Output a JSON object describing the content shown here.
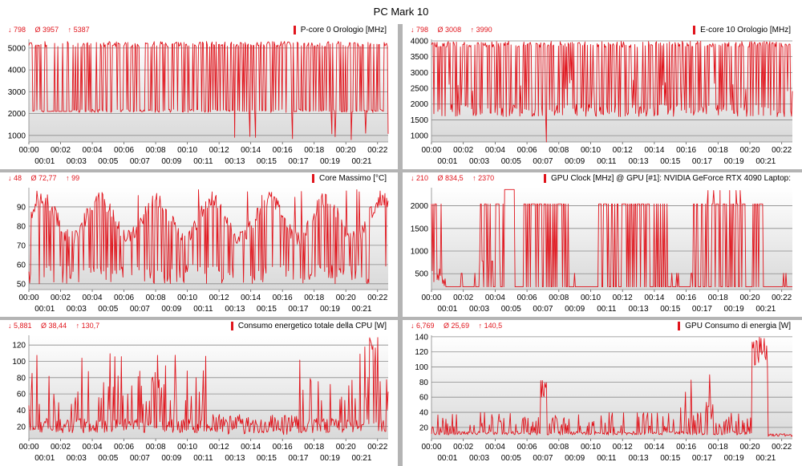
{
  "window": {
    "title": "PC Mark 10"
  },
  "colors": {
    "series": "#e0141c",
    "plot_top": "#ffffff",
    "plot_bottom": "#d9d9d9",
    "grid": "#8a8a8a",
    "separator": "#b4b4b4"
  },
  "time_ticks": {
    "top": [
      "00:00",
      "00:02",
      "00:04",
      "00:06",
      "00:08",
      "00:10",
      "00:12",
      "00:14",
      "00:16",
      "00:18",
      "00:20",
      "00:22"
    ],
    "bottom": [
      "00:01",
      "00:03",
      "00:05",
      "00:07",
      "00:09",
      "00:11",
      "00:13",
      "00:15",
      "00:17",
      "00:19",
      "00:21"
    ]
  },
  "chart_data": [
    {
      "type": "line",
      "title": "P-core 0 Orologio [MHz]",
      "stats": {
        "min": "↓ 798",
        "avg": "Ø 3957",
        "max": "↑ 5387"
      },
      "ylim": [
        700,
        5400
      ],
      "yticks": [
        "1000",
        "2000",
        "3000",
        "4000",
        "5000"
      ],
      "grid": true,
      "x_range": [
        "00:00",
        "00:22:40"
      ],
      "pattern": {
        "seed": 11,
        "levels": [
          5100,
          5200,
          5050,
          2100,
          2050
        ],
        "spike_low": 800,
        "base": 2100,
        "style": "pcore"
      }
    },
    {
      "type": "line",
      "title": "E-core 10 Orologio [MHz]",
      "stats": {
        "min": "↓ 798",
        "avg": "Ø 3008",
        "max": "↑ 3990"
      },
      "ylim": [
        800,
        4050
      ],
      "yticks": [
        "1000",
        "1500",
        "2000",
        "2500",
        "3000",
        "3500",
        "4000"
      ],
      "grid": true,
      "x_range": [
        "00:00",
        "00:22:40"
      ],
      "pattern": {
        "seed": 23,
        "levels": [
          3990,
          3900,
          1600,
          1600,
          2400
        ],
        "spike_low": 800,
        "base": 1600,
        "style": "ecore"
      }
    },
    {
      "type": "line",
      "title": "Core Massimo [°C]",
      "stats": {
        "min": "↓ 48",
        "avg": "Ø 72,77",
        "max": "↑ 99"
      },
      "ylim": [
        47,
        100
      ],
      "yticks": [
        "50",
        "60",
        "70",
        "80",
        "90"
      ],
      "grid": true,
      "x_range": [
        "00:00",
        "00:22:40"
      ],
      "pattern": {
        "seed": 37,
        "levels": [
          55,
          90,
          85,
          60,
          52
        ],
        "spike_low": 48,
        "base": 55,
        "style": "temp"
      }
    },
    {
      "type": "line",
      "title": "GPU Clock [MHz] @ GPU [#1]: NVIDIA GeForce RTX 4090 Laptop:",
      "stats": {
        "min": "↓ 210",
        "avg": "Ø 834,5",
        "max": "↑ 2370"
      },
      "ylim": [
        150,
        2400
      ],
      "yticks": [
        "500",
        "1000",
        "1500",
        "2000"
      ],
      "grid": true,
      "x_range": [
        "00:00",
        "00:22:40"
      ],
      "pattern": {
        "seed": 41,
        "levels": [
          2040,
          210,
          210,
          2040,
          780
        ],
        "spike_low": 210,
        "base": 210,
        "style": "gpuclk"
      }
    },
    {
      "type": "line",
      "title": "Consumo energetico totale della CPU [W]",
      "stats": {
        "min": "↓ 5,881",
        "avg": "Ø 38,44",
        "max": "↑ 130,7"
      },
      "ylim": [
        5,
        132
      ],
      "yticks": [
        "20",
        "40",
        "60",
        "80",
        "100",
        "120"
      ],
      "grid": true,
      "x_range": [
        "00:00",
        "00:22:40"
      ],
      "pattern": {
        "seed": 53,
        "levels": [
          20,
          60,
          90,
          25,
          15
        ],
        "spike_low": 6,
        "base": 15,
        "style": "cpupow"
      }
    },
    {
      "type": "line",
      "title": "GPU Consumo di energia [W]",
      "stats": {
        "min": "↓ 6,769",
        "avg": "Ø 25,69",
        "max": "↑ 140,5"
      },
      "ylim": [
        5,
        142
      ],
      "yticks": [
        "20",
        "40",
        "60",
        "80",
        "100",
        "120",
        "140"
      ],
      "grid": true,
      "x_range": [
        "00:00",
        "00:22:40"
      ],
      "pattern": {
        "seed": 67,
        "levels": [
          10,
          35,
          12,
          30,
          10
        ],
        "spike_low": 7,
        "base": 10,
        "style": "gpupow"
      }
    }
  ]
}
